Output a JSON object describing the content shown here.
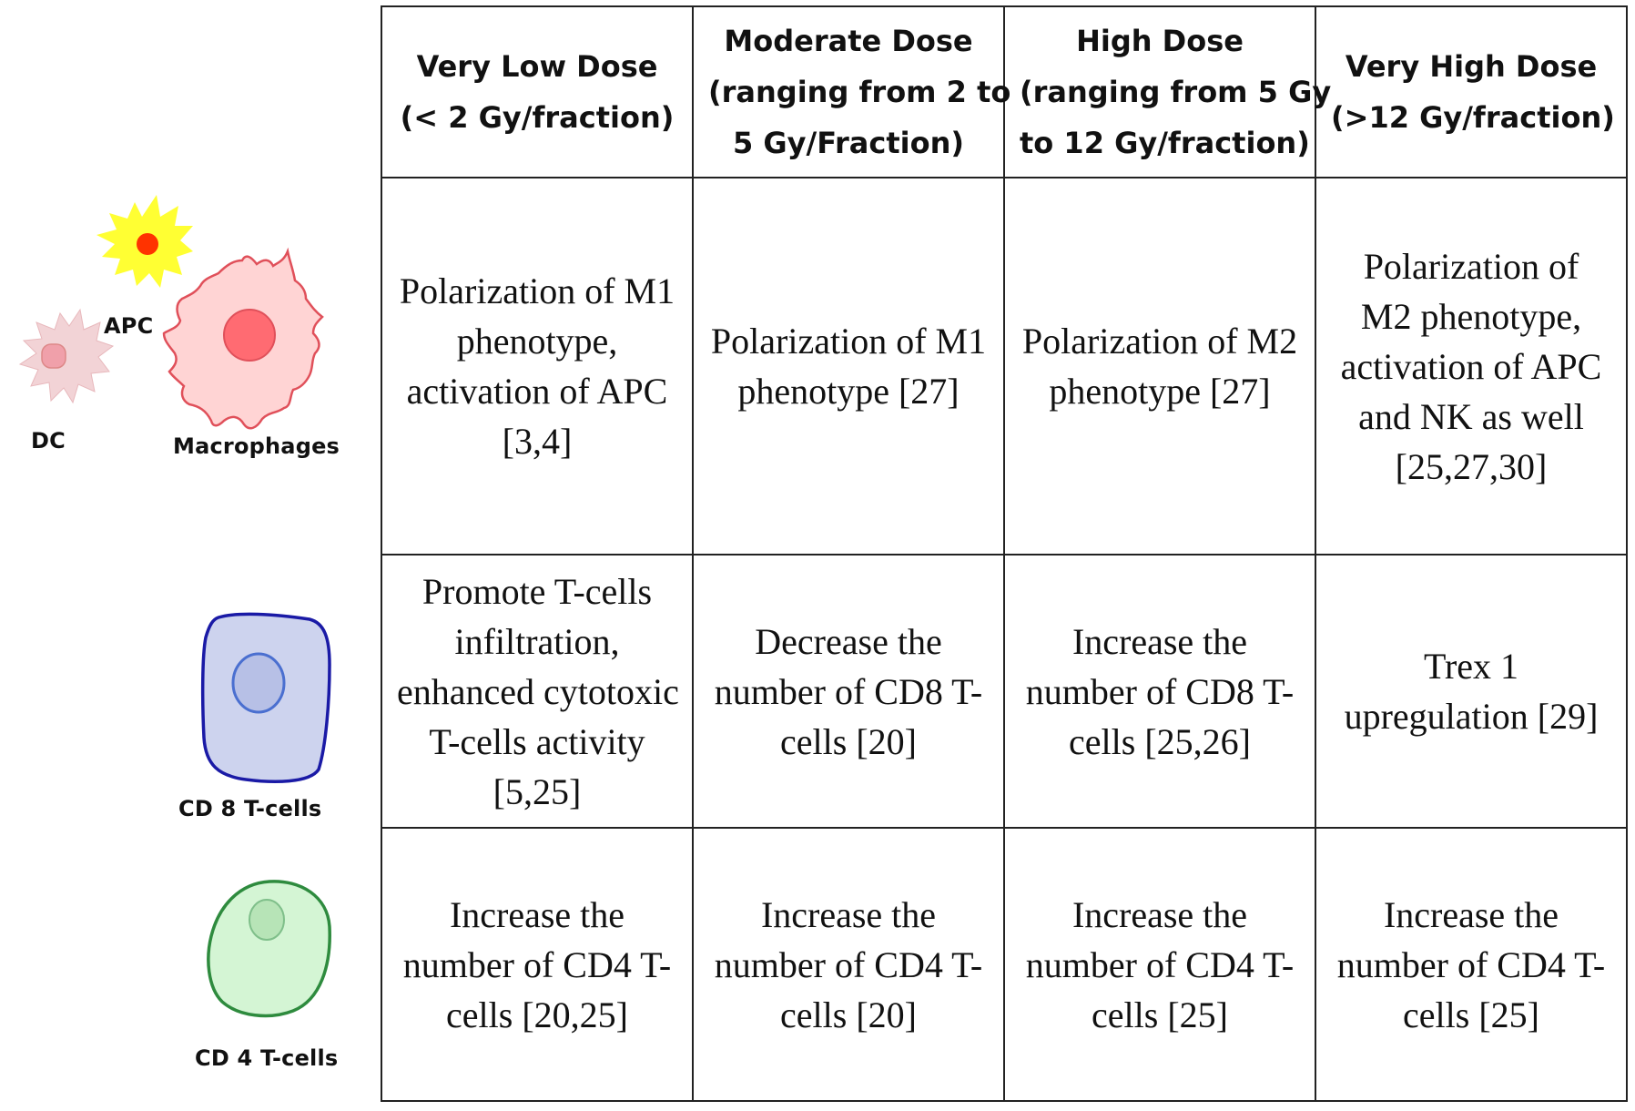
{
  "cells_panel": {
    "apc_label": "APC",
    "dc_label": "DC",
    "macrophages_label": "Macrophages",
    "cd8_label": "CD 8 T-cells",
    "cd4_label": "CD 4 T-cells",
    "colors": {
      "apc_fill": "#ffff33",
      "apc_nucleus": "#ff3300",
      "dc_fill": "#f2d3d6",
      "macrophage_fill": "#ffd4d4",
      "macrophage_stroke": "#e0505a",
      "macrophage_nucleus": "#ff6b72",
      "cd8_fill": "#cdd3ee",
      "cd8_stroke": "#1a1aa6",
      "cd4_fill": "#d4f5d4",
      "cd4_stroke": "#2e8b3e"
    }
  },
  "table": {
    "headers": [
      {
        "line1": "Very Low Dose",
        "line2": "(< 2 Gy/fraction)",
        "line3": ""
      },
      {
        "line1": "Moderate Dose",
        "line2": "(ranging from 2 to",
        "line3": "5 Gy/Fraction)"
      },
      {
        "line1": "High Dose",
        "line2": "(ranging from 5 Gy",
        "line3": "to 12 Gy/fraction)"
      },
      {
        "line1": "Very High Dose",
        "line2": "(>12 Gy/fraction)",
        "line3": ""
      }
    ],
    "rows": [
      {
        "cells": [
          {
            "lines": [
              "Polarization of M1",
              "phenotype,",
              "activation of APC",
              "[3,4]"
            ]
          },
          {
            "lines": [
              "Polarization of M1",
              "phenotype [27]"
            ]
          },
          {
            "lines": [
              "Polarization of M2",
              "phenotype [27]"
            ]
          },
          {
            "lines": [
              "Polarization of",
              "M2 phenotype,",
              "activation of APC",
              "and NK as well",
              "[25,27,30]"
            ]
          }
        ]
      },
      {
        "cells": [
          {
            "lines": [
              "Promote T-cells",
              "infiltration,",
              "enhanced cytotoxic",
              "T-cells activity",
              "[5,25]"
            ]
          },
          {
            "lines": [
              "Decrease the",
              "number of CD8 T-",
              "cells [20]"
            ]
          },
          {
            "lines": [
              "Increase the",
              "number of CD8 T-",
              "cells [25,26]"
            ]
          },
          {
            "lines": [
              "Trex 1",
              "upregulation [29]"
            ]
          }
        ]
      },
      {
        "cells": [
          {
            "lines": [
              "Increase the",
              "number of CD4 T-",
              "cells [20,25]"
            ]
          },
          {
            "lines": [
              "Increase the",
              "number of CD4 T-",
              "cells [20]"
            ]
          },
          {
            "lines": [
              "Increase the",
              "number of CD4 T-",
              "cells [25]"
            ]
          },
          {
            "lines": [
              "Increase the",
              "number of CD4 T-",
              "cells [25]"
            ]
          }
        ]
      }
    ]
  }
}
